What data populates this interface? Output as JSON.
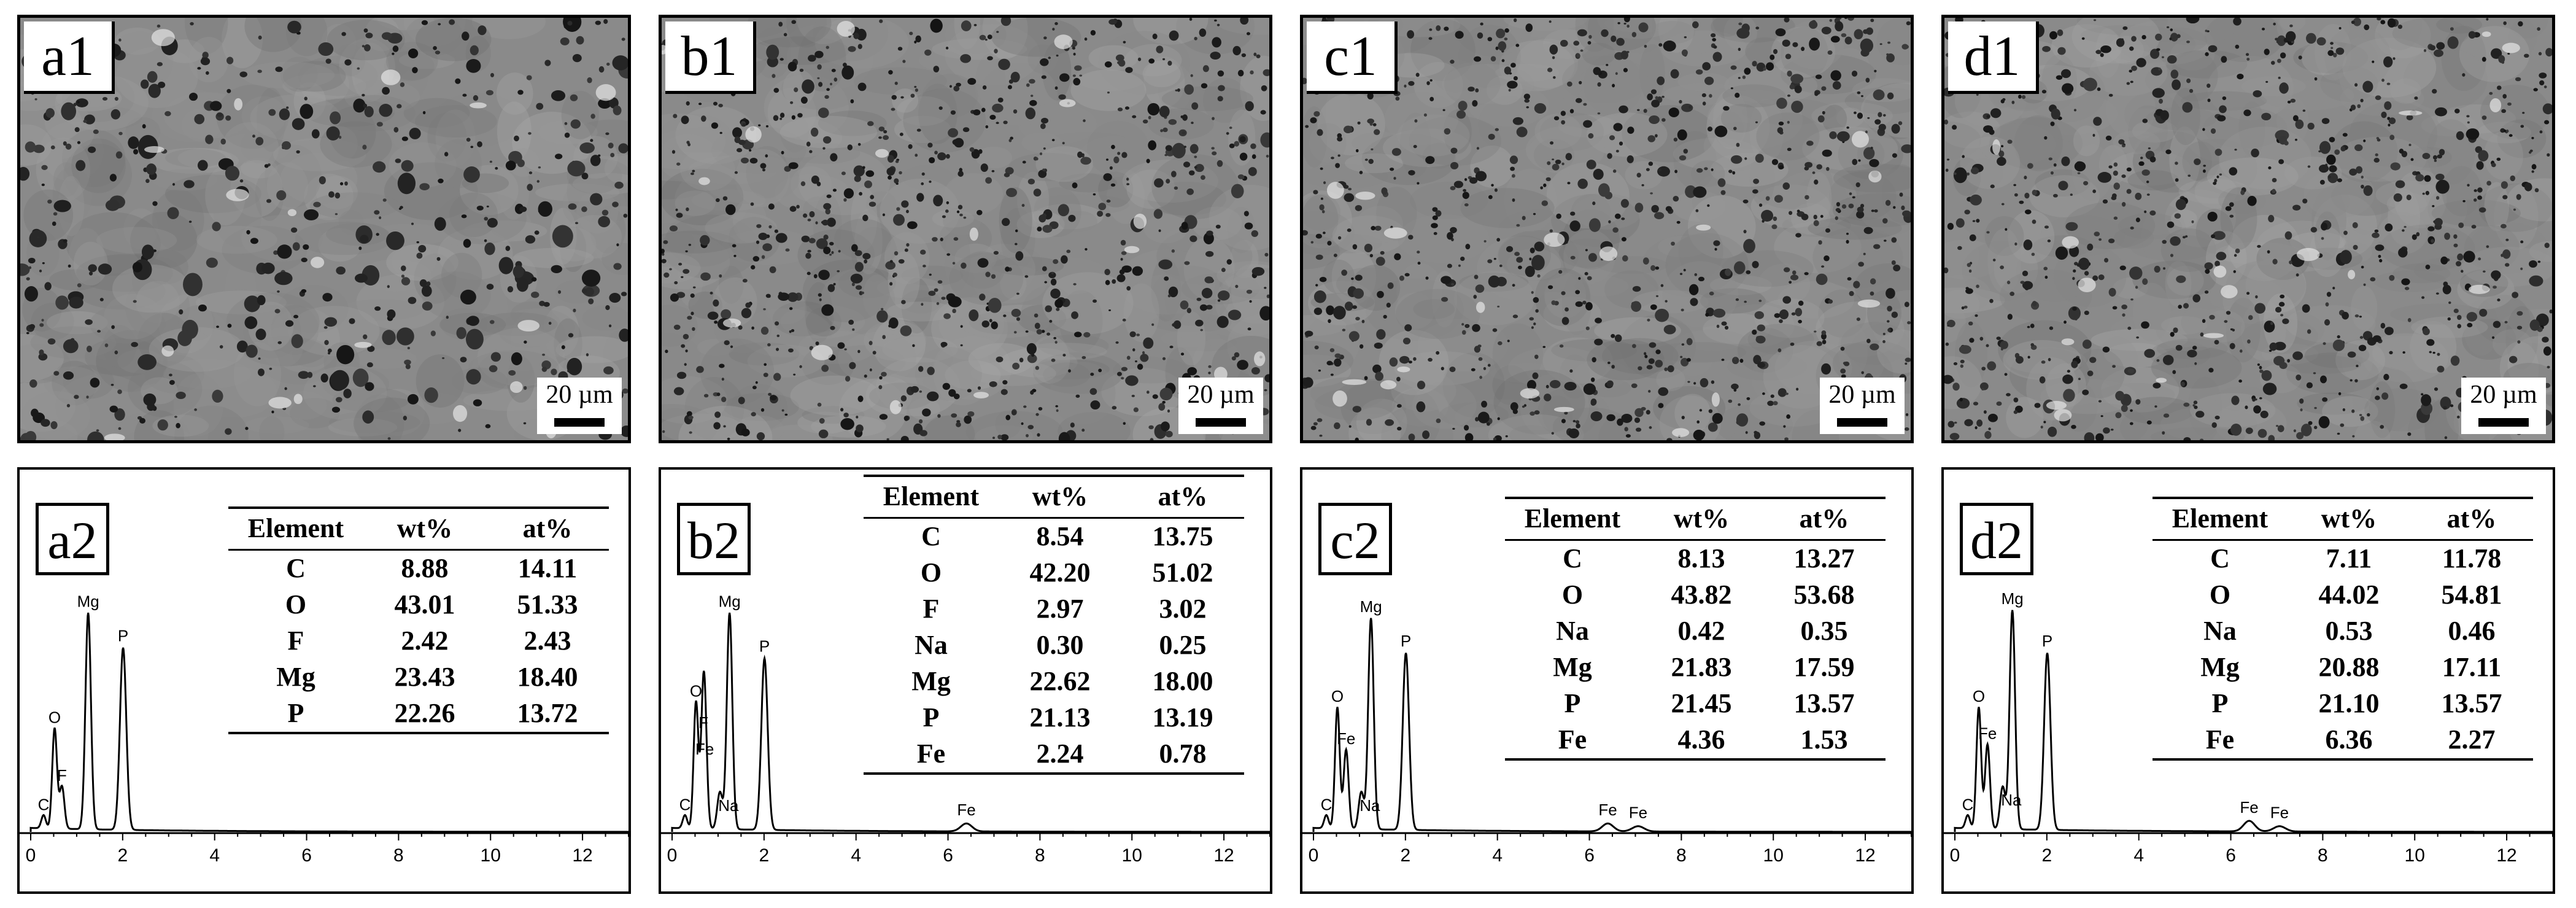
{
  "sem_panels": [
    {
      "id": "a1",
      "scale": "20 µm"
    },
    {
      "id": "b1",
      "scale": "20 µm"
    },
    {
      "id": "c1",
      "scale": "20 µm"
    },
    {
      "id": "d1",
      "scale": "20 µm"
    }
  ],
  "eds_axis_ticks": [
    "0",
    "2",
    "4",
    "6",
    "8",
    "10",
    "12"
  ],
  "eds_panels": [
    {
      "id": "a2",
      "headers": [
        "Element",
        "wt%",
        "at%"
      ],
      "rows": [
        {
          "el": "C",
          "wt": "8.88",
          "at": "14.11"
        },
        {
          "el": "O",
          "wt": "43.01",
          "at": "51.33"
        },
        {
          "el": "F",
          "wt": "2.42",
          "at": "2.43"
        },
        {
          "el": "Mg",
          "wt": "23.43",
          "at": "18.40"
        },
        {
          "el": "P",
          "wt": "22.26",
          "at": "13.72"
        }
      ],
      "peaks": [
        {
          "label": "C",
          "energy": 0.28,
          "height": 0.05
        },
        {
          "label": "O",
          "energy": 0.52,
          "height": 0.38
        },
        {
          "label": "F",
          "energy": 0.68,
          "height": 0.16
        },
        {
          "label": "Mg",
          "energy": 1.25,
          "height": 0.82
        },
        {
          "label": "P",
          "energy": 2.01,
          "height": 0.69
        }
      ]
    },
    {
      "id": "b2",
      "headers": [
        "Element",
        "wt%",
        "at%"
      ],
      "rows": [
        {
          "el": "C",
          "wt": "8.54",
          "at": "13.75"
        },
        {
          "el": "O",
          "wt": "42.20",
          "at": "51.02"
        },
        {
          "el": "F",
          "wt": "2.97",
          "at": "3.02"
        },
        {
          "el": "Na",
          "wt": "0.30",
          "at": "0.25"
        },
        {
          "el": "Mg",
          "wt": "22.62",
          "at": "18.00"
        },
        {
          "el": "P",
          "wt": "21.13",
          "at": "13.19"
        },
        {
          "el": "Fe",
          "wt": "2.24",
          "at": "0.78"
        }
      ],
      "peaks": [
        {
          "label": "C",
          "energy": 0.28,
          "height": 0.05
        },
        {
          "label": "O",
          "energy": 0.52,
          "height": 0.48
        },
        {
          "label": "F",
          "energy": 0.68,
          "height": 0.36
        },
        {
          "label": "Fe",
          "energy": 0.71,
          "height": 0.26
        },
        {
          "label": "Na",
          "energy": 1.04,
          "height": 0.14
        },
        {
          "label": "Mg",
          "energy": 1.25,
          "height": 0.82
        },
        {
          "label": "P",
          "energy": 2.01,
          "height": 0.65
        },
        {
          "label": "Fe",
          "energy": 6.4,
          "height": 0.03
        }
      ]
    },
    {
      "id": "c2",
      "headers": [
        "Element",
        "wt%",
        "at%"
      ],
      "rows": [
        {
          "el": "C",
          "wt": "8.13",
          "at": "13.27"
        },
        {
          "el": "O",
          "wt": "43.82",
          "at": "53.68"
        },
        {
          "el": "Na",
          "wt": "0.42",
          "at": "0.35"
        },
        {
          "el": "Mg",
          "wt": "21.83",
          "at": "17.59"
        },
        {
          "el": "P",
          "wt": "21.45",
          "at": "13.57"
        },
        {
          "el": "Fe",
          "wt": "4.36",
          "at": "1.53"
        }
      ],
      "peaks": [
        {
          "label": "C",
          "energy": 0.28,
          "height": 0.05
        },
        {
          "label": "O",
          "energy": 0.52,
          "height": 0.46
        },
        {
          "label": "Fe",
          "energy": 0.71,
          "height": 0.3
        },
        {
          "label": "Na",
          "energy": 1.04,
          "height": 0.14
        },
        {
          "label": "Mg",
          "energy": 1.25,
          "height": 0.8
        },
        {
          "label": "P",
          "energy": 2.01,
          "height": 0.67
        },
        {
          "label": "Fe",
          "energy": 6.4,
          "height": 0.03
        },
        {
          "label": "Fe",
          "energy": 7.06,
          "height": 0.02
        }
      ]
    },
    {
      "id": "d2",
      "headers": [
        "Element",
        "wt%",
        "at%"
      ],
      "rows": [
        {
          "el": "C",
          "wt": "7.11",
          "at": "11.78"
        },
        {
          "el": "O",
          "wt": "44.02",
          "at": "54.81"
        },
        {
          "el": "Na",
          "wt": "0.53",
          "at": "0.46"
        },
        {
          "el": "Mg",
          "wt": "20.88",
          "at": "17.11"
        },
        {
          "el": "P",
          "wt": "21.10",
          "at": "13.57"
        },
        {
          "el": "Fe",
          "wt": "6.36",
          "at": "2.27"
        }
      ],
      "peaks": [
        {
          "label": "C",
          "energy": 0.28,
          "height": 0.05
        },
        {
          "label": "O",
          "energy": 0.52,
          "height": 0.46
        },
        {
          "label": "Fe",
          "energy": 0.71,
          "height": 0.32
        },
        {
          "label": "Na",
          "energy": 1.04,
          "height": 0.16
        },
        {
          "label": "Mg",
          "energy": 1.25,
          "height": 0.83
        },
        {
          "label": "P",
          "energy": 2.01,
          "height": 0.67
        },
        {
          "label": "Fe",
          "energy": 6.4,
          "height": 0.04
        },
        {
          "label": "Fe",
          "energy": 7.06,
          "height": 0.02
        }
      ]
    }
  ]
}
